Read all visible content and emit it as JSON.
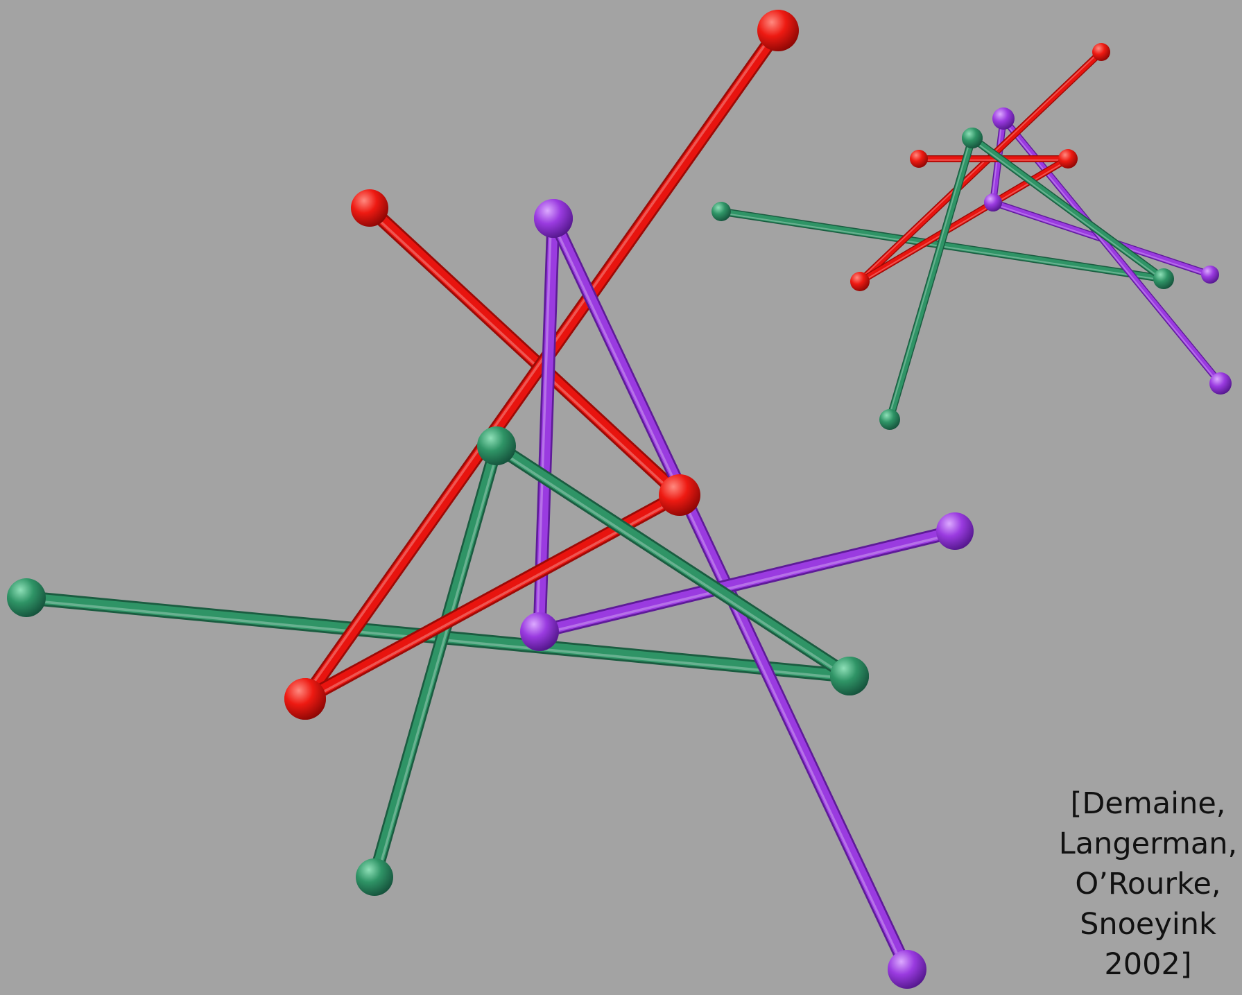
{
  "colors": {
    "background": "#a3a3a3",
    "red_chain": "#e8140f",
    "purple_chain": "#9a3be0",
    "green_chain": "#2f9466"
  },
  "chains": [
    {
      "name": "red",
      "color_key": "red_chain"
    },
    {
      "name": "purple",
      "color_key": "purple_chain"
    },
    {
      "name": "green",
      "color_key": "green_chain"
    }
  ],
  "citation": {
    "lines": [
      "[Demaine,",
      "Langerman,",
      "O’Rourke,",
      "Snoeyink",
      "2002]"
    ]
  }
}
